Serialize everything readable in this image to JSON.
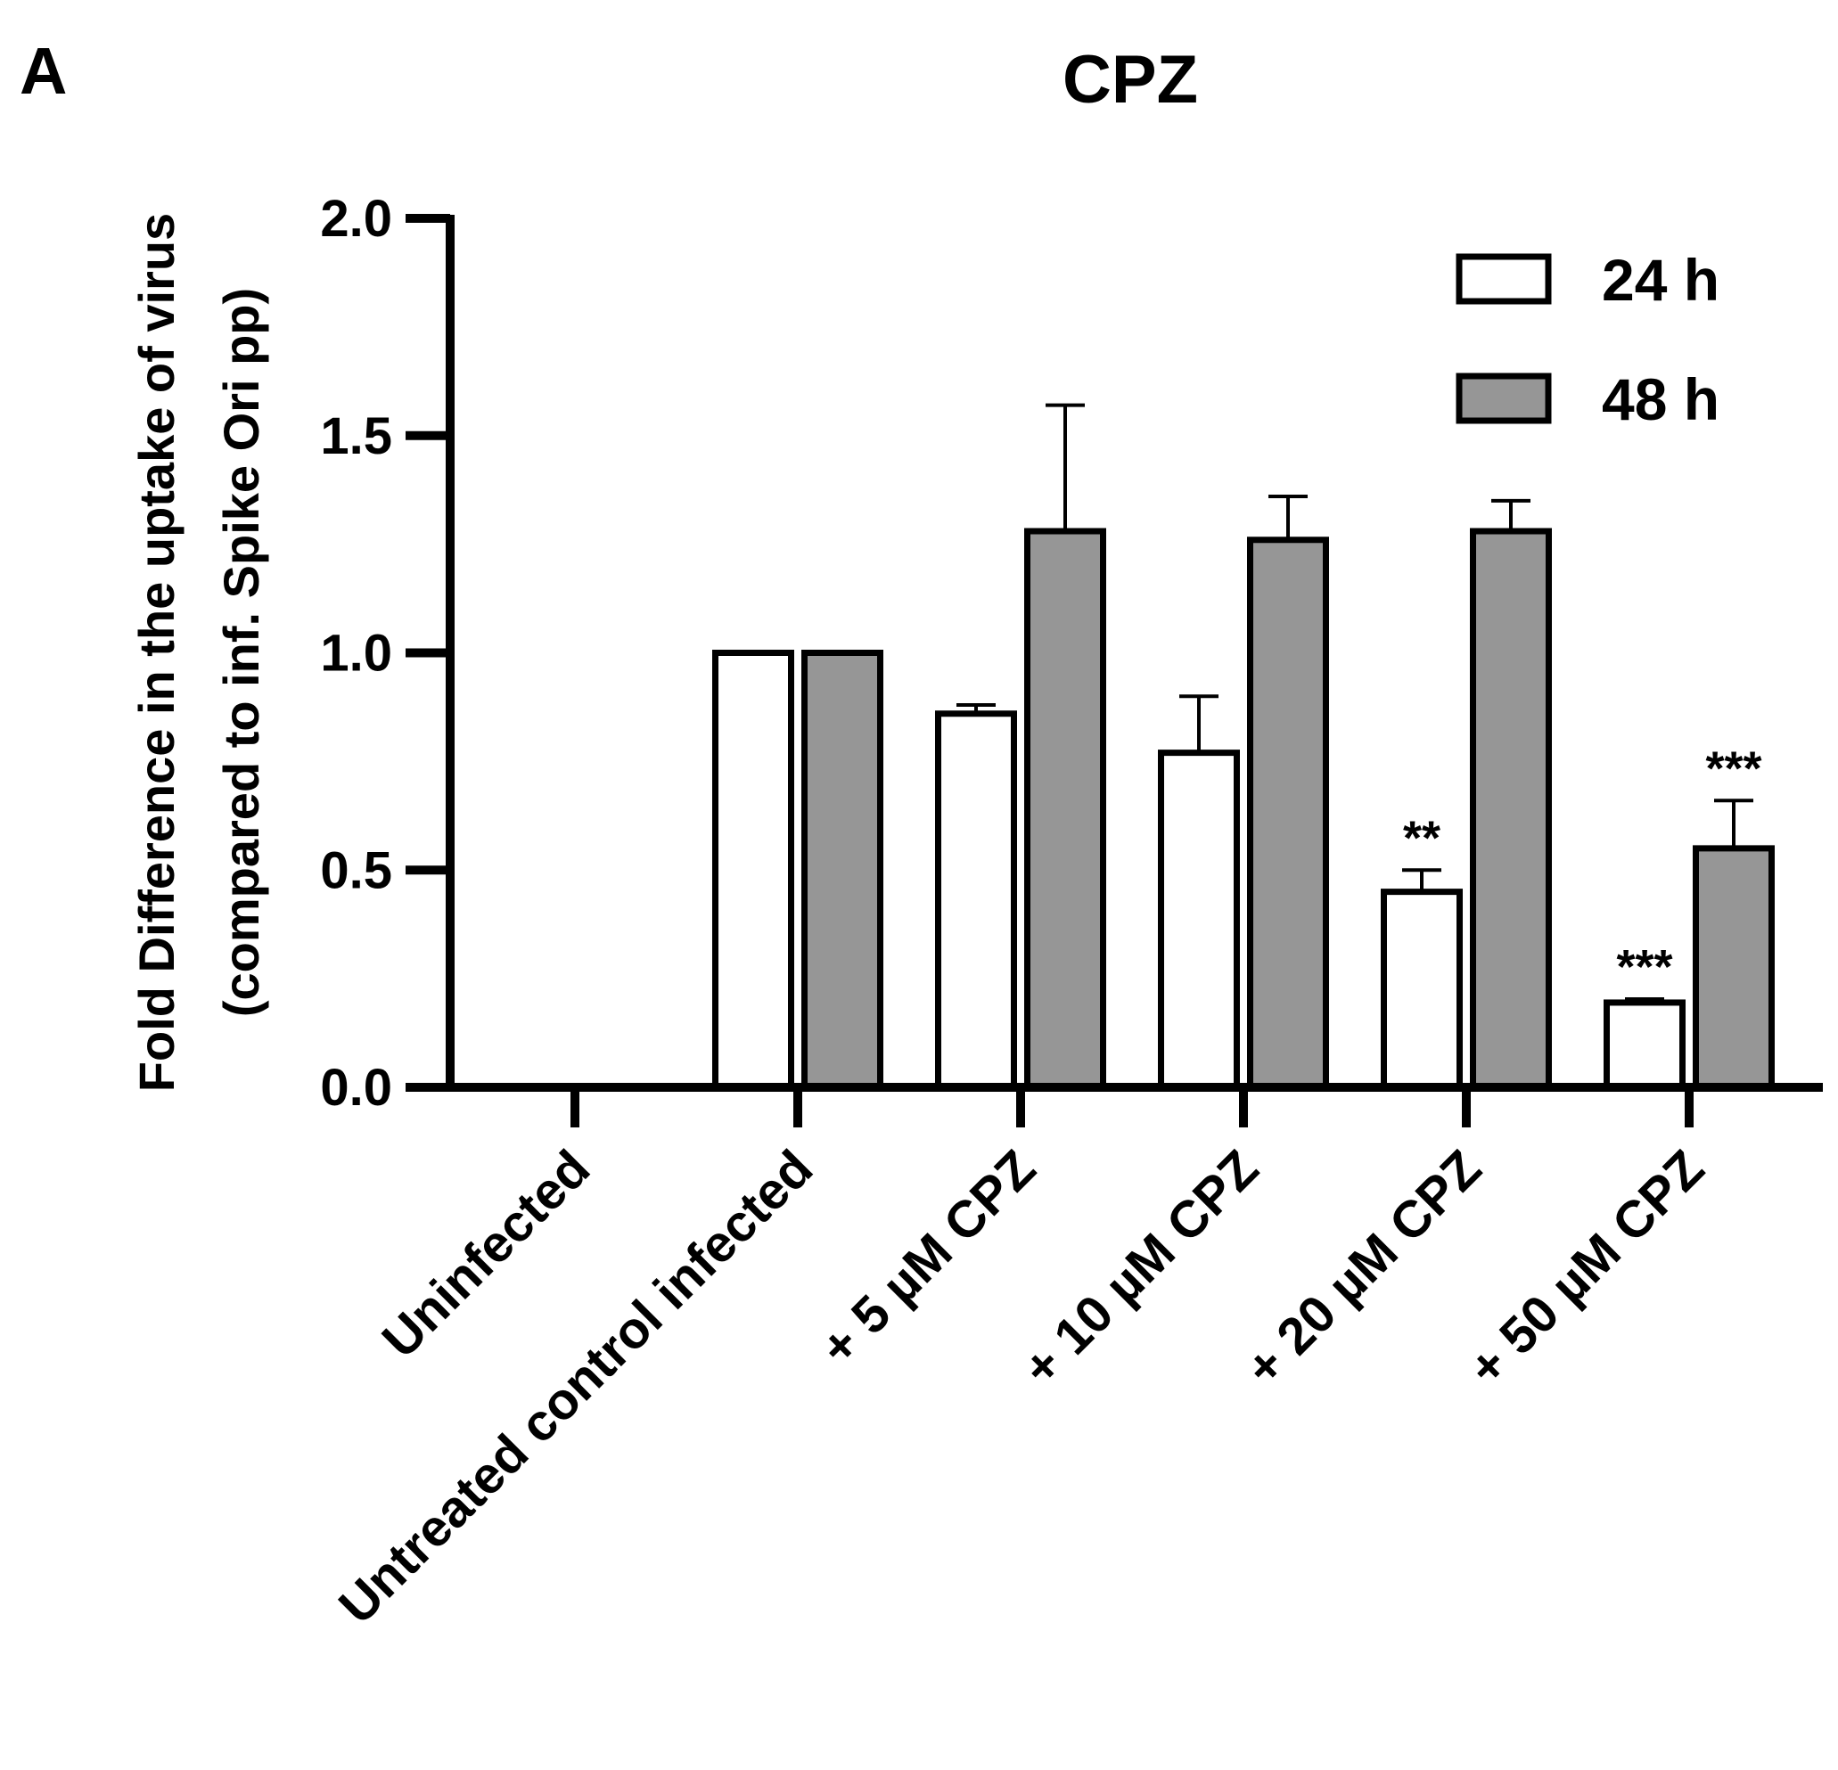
{
  "panel_label": "A",
  "chart_data": {
    "type": "bar",
    "title": "CPZ",
    "xlabel": "",
    "ylabel_line1": "Fold Difference in the uptake of virus",
    "ylabel_line2": "(compared to inf. Spike Ori pp)",
    "ylim": [
      0,
      2.0
    ],
    "yticks": [
      "0.0",
      "0.5",
      "1.0",
      "1.5",
      "2.0"
    ],
    "categories": [
      "Uninfected",
      "Untreated control infected",
      "+ 5 µM CPZ",
      "+ 10 µM CPZ",
      "+ 20 µM CPZ",
      "+ 50 µM CPZ"
    ],
    "series": [
      {
        "name": "24 h",
        "color": "#ffffff",
        "values": [
          0,
          1.0,
          0.86,
          0.77,
          0.45,
          0.195
        ],
        "errors": [
          0,
          0,
          0.02,
          0.13,
          0.05,
          0.008
        ],
        "significance": [
          "",
          "",
          "",
          "",
          "**",
          "***"
        ]
      },
      {
        "name": "48 h",
        "color": "#969696",
        "values": [
          0,
          1.0,
          1.28,
          1.26,
          1.28,
          0.55
        ],
        "errors": [
          0,
          0,
          0.29,
          0.1,
          0.07,
          0.11
        ],
        "significance": [
          "",
          "",
          "",
          "",
          "",
          "***"
        ]
      }
    ],
    "legend_position": "top-right"
  }
}
